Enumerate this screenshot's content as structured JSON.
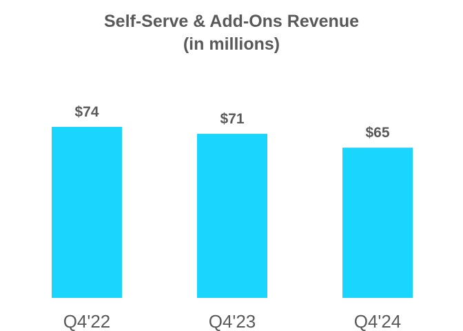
{
  "chart_data": {
    "type": "bar",
    "title": "Self-Serve & Add-Ons Revenue",
    "subtitle": "(in millions)",
    "categories": [
      "Q4'22",
      "Q4'23",
      "Q4'24"
    ],
    "values": [
      74,
      71,
      65
    ],
    "value_labels": [
      "$74",
      "$71",
      "$65"
    ],
    "ylim": [
      0,
      74
    ],
    "grid": false,
    "legend": "none",
    "bar_color": "#1AD6FF",
    "text_color": "#595959"
  }
}
